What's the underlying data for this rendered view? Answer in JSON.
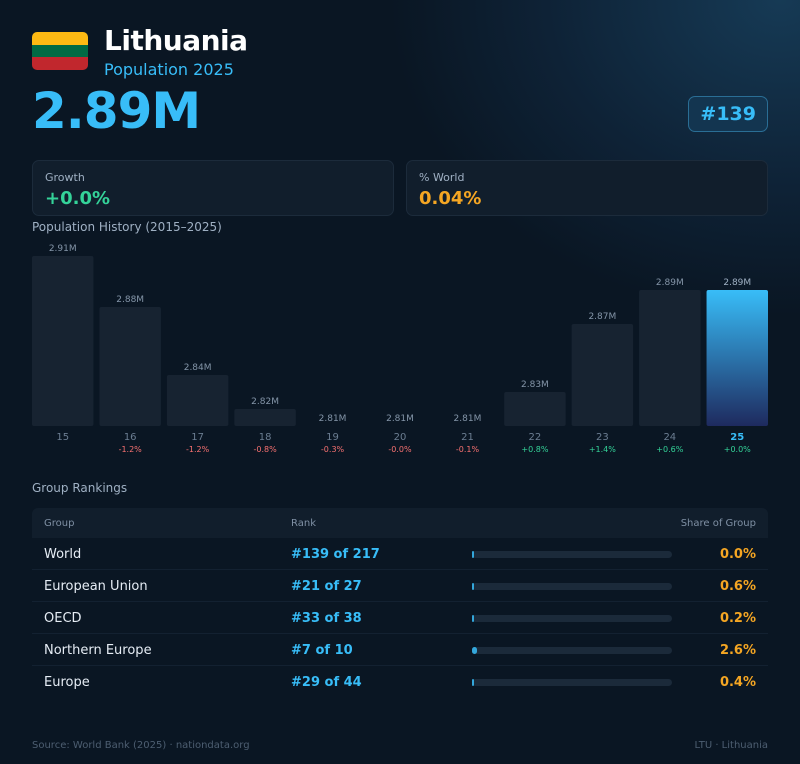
{
  "header": {
    "country": "Lithuania",
    "subtitle": "Population 2025",
    "population": "2.89M",
    "rank_badge": "#139",
    "flag_colors": [
      "#FDB913",
      "#006A44",
      "#C1272D"
    ]
  },
  "cards": {
    "growth": {
      "label": "Growth",
      "value": "+0.0%",
      "color": "#34d399"
    },
    "world": {
      "label": "% World",
      "value": "0.04%",
      "color": "#f5a623"
    }
  },
  "history_title": "Population History (2015–2025)",
  "chart_data": {
    "type": "bar",
    "categories": [
      "15",
      "16",
      "17",
      "18",
      "19",
      "20",
      "21",
      "22",
      "23",
      "24",
      "25"
    ],
    "values": [
      2.91,
      2.88,
      2.84,
      2.82,
      2.81,
      2.81,
      2.81,
      2.83,
      2.87,
      2.89,
      2.89
    ],
    "value_labels": [
      "2.91M",
      "2.88M",
      "2.84M",
      "2.82M",
      "2.81M",
      "2.81M",
      "2.81M",
      "2.83M",
      "2.87M",
      "2.89M",
      "2.89M"
    ],
    "growth_labels": [
      "",
      "-1.2%",
      "-1.2%",
      "-0.8%",
      "-0.3%",
      "-0.0%",
      "-0.1%",
      "+0.8%",
      "+1.4%",
      "+0.6%",
      "+0.0%"
    ],
    "unit": "M",
    "highlight_index": 10,
    "colors": {
      "bar": "#172331",
      "highlight_top": "#38bdf8",
      "highlight_bottom": "#1e2a5e",
      "negative": "#f87171",
      "positive": "#34d399",
      "value_label": "#8495a8",
      "tick": "#6b7d91"
    }
  },
  "rankings": {
    "title": "Group Rankings",
    "columns": [
      "Group",
      "Rank",
      "Share of Group"
    ],
    "rows": [
      {
        "group": "World",
        "rank": "#139 of 217",
        "share": "0.0%",
        "share_value": 0.0
      },
      {
        "group": "European Union",
        "rank": "#21 of 27",
        "share": "0.6%",
        "share_value": 0.6
      },
      {
        "group": "OECD",
        "rank": "#33 of 38",
        "share": "0.2%",
        "share_value": 0.2
      },
      {
        "group": "Northern Europe",
        "rank": "#7 of 10",
        "share": "2.6%",
        "share_value": 2.6
      },
      {
        "group": "Europe",
        "rank": "#29 of 44",
        "share": "0.4%",
        "share_value": 0.4
      }
    ]
  },
  "footer": {
    "source": "Source: World Bank (2025) · nationdata.org",
    "code": "LTU · Lithuania"
  }
}
